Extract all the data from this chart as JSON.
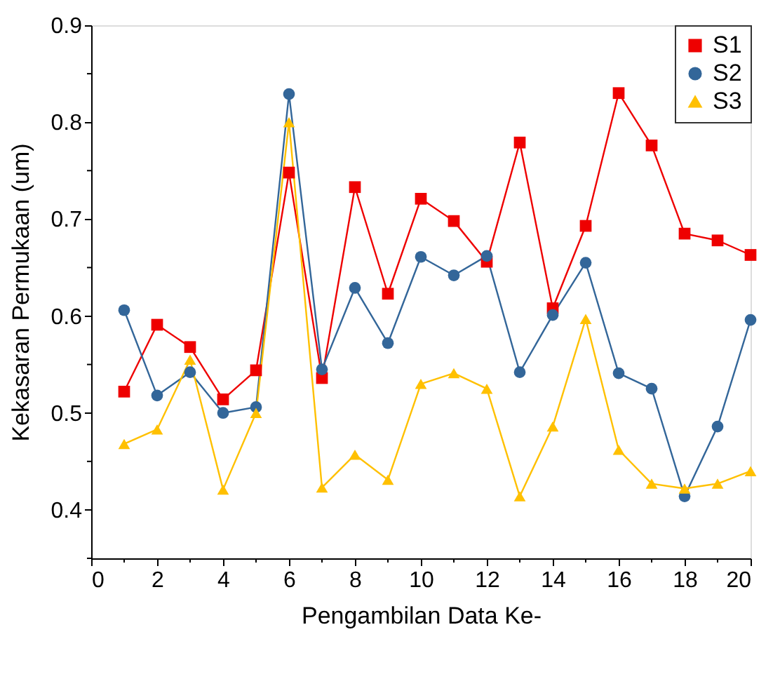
{
  "chart_data": {
    "type": "line",
    "xlabel": "Pengambilan Data Ke-",
    "ylabel": "Kekasaran Permukaan (um)",
    "x": [
      1,
      2,
      3,
      4,
      5,
      6,
      7,
      8,
      9,
      10,
      11,
      12,
      13,
      14,
      15,
      16,
      17,
      18,
      19,
      20
    ],
    "series": [
      {
        "name": "S1",
        "color": "#ee0000",
        "marker": "square",
        "values": [
          0.522,
          0.591,
          0.568,
          0.514,
          0.544,
          0.748,
          0.536,
          0.733,
          0.623,
          0.721,
          0.698,
          0.656,
          0.779,
          0.608,
          0.693,
          0.83,
          0.776,
          0.685,
          0.678,
          0.663
        ]
      },
      {
        "name": "S2",
        "color": "#336699",
        "marker": "circle",
        "values": [
          0.606,
          0.518,
          0.542,
          0.5,
          0.506,
          0.829,
          0.545,
          0.629,
          0.572,
          0.661,
          0.642,
          0.662,
          0.542,
          0.601,
          0.655,
          0.541,
          0.525,
          0.414,
          0.486,
          0.596
        ]
      },
      {
        "name": "S3",
        "color": "#ffc000",
        "marker": "triangle",
        "values": [
          0.468,
          0.483,
          0.555,
          0.421,
          0.5,
          0.8,
          0.423,
          0.457,
          0.431,
          0.53,
          0.541,
          0.525,
          0.414,
          0.486,
          0.597,
          0.462,
          0.427,
          0.422,
          0.427,
          0.44
        ]
      }
    ],
    "xlim": [
      0,
      20
    ],
    "xticks": [
      0,
      {
        "value": 1,
        "label": null
      },
      2,
      {
        "value": 3,
        "label": null
      },
      4,
      {
        "value": 5,
        "label": null
      },
      6,
      {
        "value": 7,
        "label": null
      },
      8,
      {
        "value": 9,
        "label": null
      },
      10,
      {
        "value": 11,
        "label": null
      },
      12,
      {
        "value": 13,
        "label": null
      },
      14,
      {
        "value": 15,
        "label": null
      },
      16,
      {
        "value": 17,
        "label": null
      },
      18,
      {
        "value": 19,
        "label": null
      },
      20
    ],
    "ylim": [
      0.35,
      0.9
    ],
    "yticks": [
      {
        "value": 0.35,
        "label": null
      },
      0.4,
      {
        "value": 0.45,
        "label": null
      },
      0.5,
      {
        "value": 0.55,
        "label": null
      },
      0.6,
      {
        "value": 0.65,
        "label": null
      },
      0.7,
      {
        "value": 0.75,
        "label": null
      },
      0.8,
      {
        "value": 0.85,
        "label": null
      },
      0.9
    ],
    "grid": false,
    "legend": "top right",
    "line_style": "solid"
  }
}
